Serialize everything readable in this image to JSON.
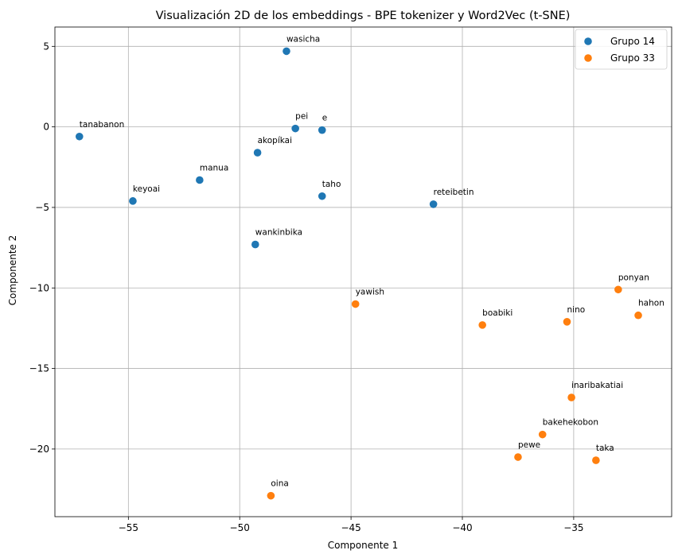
{
  "chart_data": {
    "type": "scatter",
    "title": "Visualización 2D de los embeddings - BPE tokenizer y Word2Vec (t-SNE)",
    "xlabel": "Componente 1",
    "ylabel": "Componente 2",
    "xlim": [
      -58.3,
      -30.6
    ],
    "ylim": [
      -24.2,
      6.2
    ],
    "xticks": [
      -55,
      -50,
      -45,
      -40,
      -35
    ],
    "yticks": [
      5,
      0,
      -5,
      -10,
      -15,
      -20
    ],
    "grid": true,
    "legend_position": "top-right",
    "series": [
      {
        "name": "Grupo 14",
        "color": "#1f77b4",
        "points": [
          {
            "label": "wasicha",
            "x": -47.9,
            "y": 4.7
          },
          {
            "label": "pei",
            "x": -47.5,
            "y": -0.1
          },
          {
            "label": "e",
            "x": -46.3,
            "y": -0.2
          },
          {
            "label": "tanabanon",
            "x": -57.2,
            "y": -0.6
          },
          {
            "label": "akopíkai",
            "x": -49.2,
            "y": -1.6
          },
          {
            "label": "manua",
            "x": -51.8,
            "y": -3.3
          },
          {
            "label": "keyoai",
            "x": -54.8,
            "y": -4.6
          },
          {
            "label": "taho",
            "x": -46.3,
            "y": -4.3
          },
          {
            "label": "reteibetin",
            "x": -41.3,
            "y": -4.8
          },
          {
            "label": "wankinbika",
            "x": -49.3,
            "y": -7.3
          }
        ]
      },
      {
        "name": "Grupo 33",
        "color": "#ff7f0e",
        "points": [
          {
            "label": "ponyan",
            "x": -33.0,
            "y": -10.1
          },
          {
            "label": "yawish",
            "x": -44.8,
            "y": -11.0
          },
          {
            "label": "hahon",
            "x": -32.1,
            "y": -11.7
          },
          {
            "label": "nino",
            "x": -35.3,
            "y": -12.1
          },
          {
            "label": "boabiki",
            "x": -39.1,
            "y": -12.3
          },
          {
            "label": "inaribakatiai",
            "x": -35.1,
            "y": -16.8
          },
          {
            "label": "bakehekobon",
            "x": -36.4,
            "y": -19.1
          },
          {
            "label": "pewe",
            "x": -37.5,
            "y": -20.5
          },
          {
            "label": "taka",
            "x": -34.0,
            "y": -20.7
          },
          {
            "label": "oina",
            "x": -48.6,
            "y": -22.9
          }
        ]
      }
    ]
  }
}
